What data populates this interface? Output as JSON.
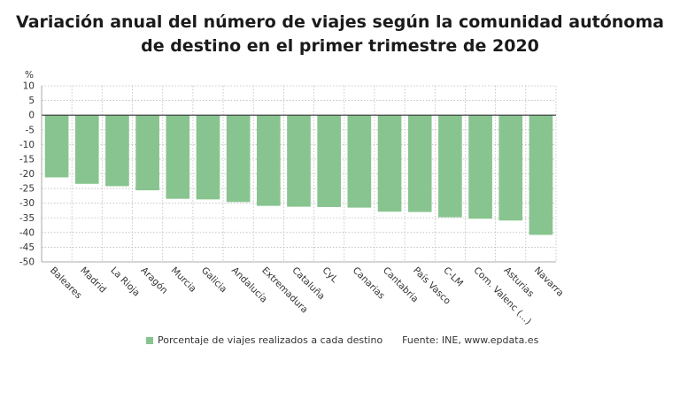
{
  "title_line1": "Variación anual del número de viajes según la comunidad autónoma",
  "title_line2": "de destino en el primer trimestre de 2020",
  "legend_label": "Porcentaje de viajes realizados a cada destino",
  "source": "Fuente: INE, www.epdata.es",
  "colors": {
    "bar": "#88c48f",
    "grid": "#bbbbbb",
    "zero_line": "#333333"
  },
  "chart_data": {
    "type": "bar",
    "ylabel": "%",
    "ylim": [
      -50,
      10
    ],
    "ytick_step": 5,
    "grid": true,
    "legend_position": "bottom",
    "categories": [
      "Baleares",
      "Madrid",
      "La Rioja",
      "Aragón",
      "Murcia",
      "Galicia",
      "Andalucía",
      "Extremadura",
      "Cataluña",
      "CyL",
      "Canarias",
      "Cantabria",
      "País Vasco",
      "C-LM",
      "Com. Valenc (...)",
      "Asturias",
      "Navarra"
    ],
    "series": [
      {
        "name": "Porcentaje de viajes realizados a cada destino",
        "values": [
          -21.2,
          -23.4,
          -24.2,
          -25.6,
          -28.5,
          -28.7,
          -29.6,
          -30.9,
          -31.2,
          -31.3,
          -31.5,
          -32.9,
          -33.0,
          -34.8,
          -35.3,
          -35.9,
          -40.8
        ]
      }
    ]
  }
}
